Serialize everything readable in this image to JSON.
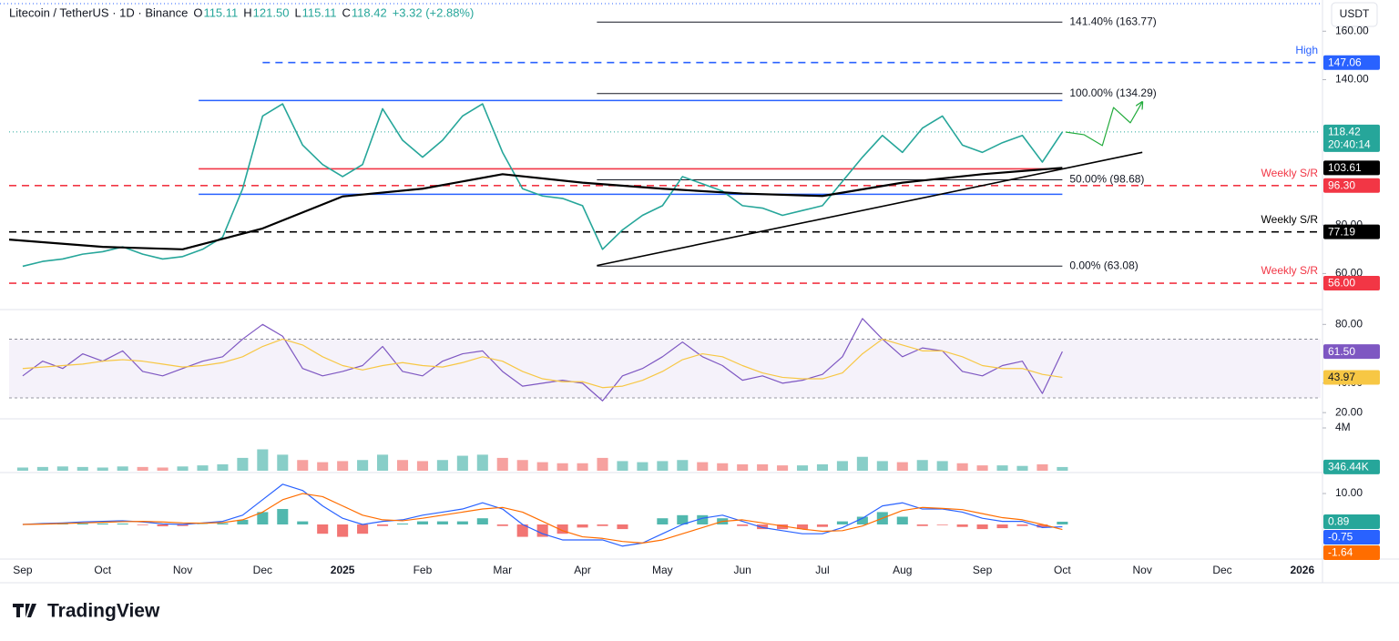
{
  "header": {
    "symbol": "Litecoin / TetherUS · 1D · Binance",
    "ohlc": [
      {
        "key": "O",
        "value": "115.11"
      },
      {
        "key": "H",
        "value": "121.50"
      },
      {
        "key": "L",
        "value": "115.11"
      },
      {
        "key": "C",
        "value": "118.42"
      }
    ],
    "change": "+3.32 (+2.88%)",
    "currency": "USDT"
  },
  "time_axis": {
    "xlim": [
      -0.17,
      16.23
    ],
    "xticks": [
      {
        "value": 0,
        "label": "Sep"
      },
      {
        "value": 1,
        "label": "Oct"
      },
      {
        "value": 2,
        "label": "Nov"
      },
      {
        "value": 3,
        "label": "Dec"
      },
      {
        "value": 4,
        "label": "2025"
      },
      {
        "value": 5,
        "label": "Feb"
      },
      {
        "value": 6,
        "label": "Mar"
      },
      {
        "value": 7,
        "label": "Apr"
      },
      {
        "value": 8,
        "label": "May"
      },
      {
        "value": 9,
        "label": "Jun"
      },
      {
        "value": 10,
        "label": "Jul"
      },
      {
        "value": 11,
        "label": "Aug"
      },
      {
        "value": 12,
        "label": "Sep"
      },
      {
        "value": 13,
        "label": "Oct"
      },
      {
        "value": 14,
        "label": "Nov"
      },
      {
        "value": 15,
        "label": "Dec"
      },
      {
        "value": 16,
        "label": "2026"
      }
    ]
  },
  "chart_data": [
    {
      "type": "line",
      "ylim": [
        47,
        171
      ],
      "yticks": [
        {
          "value": 60,
          "label": "60.00"
        },
        {
          "value": 80,
          "label": "80.00"
        },
        {
          "value": 140,
          "label": "140.00"
        },
        {
          "value": 160,
          "label": "160.00"
        }
      ],
      "x": [
        0,
        0.25,
        0.5,
        0.75,
        1,
        1.25,
        1.5,
        1.75,
        2,
        2.25,
        2.5,
        2.75,
        3,
        3.25,
        3.5,
        3.75,
        4,
        4.25,
        4.5,
        4.75,
        5,
        5.25,
        5.5,
        5.75,
        6,
        6.25,
        6.5,
        6.75,
        7,
        7.25,
        7.5,
        7.75,
        8,
        8.25,
        8.5,
        8.75,
        9,
        9.25,
        9.5,
        9.75,
        10,
        10.25,
        10.5,
        10.75,
        11,
        11.25,
        11.5,
        11.75,
        12,
        12.25,
        12.5,
        12.75,
        13
      ],
      "series": [
        {
          "style": "line",
          "color": "#26a69a",
          "width": 1.6,
          "values": [
            63,
            65,
            66,
            68,
            69,
            71,
            68,
            66,
            67,
            70,
            75,
            95,
            125,
            130,
            113,
            105,
            100,
            105,
            128,
            115,
            108,
            115,
            125,
            130,
            110,
            95,
            92,
            91,
            88,
            70,
            78,
            84,
            88,
            100,
            97,
            94,
            88,
            87,
            84,
            86,
            88,
            98,
            108,
            117,
            110,
            120,
            125,
            113,
            110,
            114,
            117,
            106,
            118.42
          ],
          "badge": {
            "color": "#26a69a",
            "extra": "20:40:14"
          },
          "last_line": true
        },
        {
          "style": "line",
          "color": "#000000",
          "width": 2.2,
          "x": [
            -0.17,
            1,
            2,
            3,
            4,
            5,
            6,
            7,
            8,
            9,
            10,
            11,
            12,
            13
          ],
          "values": [
            74,
            71,
            70,
            78.6,
            91.8,
            95,
            101,
            97.5,
            95,
            93,
            92,
            97.5,
            101,
            103.61
          ],
          "badge": {
            "color": "#000000",
            "label": "103.61"
          }
        },
        {
          "style": "line",
          "color": "#000000",
          "width": 1.6,
          "x": [
            7.18,
            14.0
          ],
          "values": [
            63.3,
            110
          ]
        },
        {
          "style": "arrow",
          "color": "#22ab3c",
          "width": 1.2,
          "x": [
            13.04,
            13.27,
            13.5,
            13.64,
            13.85,
            14.0
          ],
          "values": [
            118.4,
            117.3,
            112.8,
            128.5,
            122.2,
            130.8
          ]
        }
      ],
      "levels": [
        {
          "value": 163.77,
          "color": "#131722",
          "from": 7.18,
          "to": 13.0,
          "text": "141.40% (163.77)"
        },
        {
          "value": 147.06,
          "color": "#2962ff",
          "dash": true,
          "from": 3.0,
          "to": 16.23,
          "note": "High",
          "badge": "147.06"
        },
        {
          "value": 134.29,
          "color": "#131722",
          "from": 7.18,
          "to": 13.0,
          "text": "100.00% (134.29)"
        },
        {
          "value": 131.4,
          "color": "#2962ff",
          "from": 2.2,
          "to": 13.0
        },
        {
          "value": 103.2,
          "color": "#f23645",
          "from": 2.2,
          "to": 13.0
        },
        {
          "value": 98.68,
          "color": "#131722",
          "from": 7.18,
          "to": 13.0,
          "text": "50.00% (98.68)"
        },
        {
          "value": 96.3,
          "color": "#f23645",
          "dash": true,
          "note": "Weekly S/R",
          "badge": "96.30"
        },
        {
          "value": 92.7,
          "color": "#2962ff",
          "from": 2.2,
          "to": 13.0
        },
        {
          "value": 77.19,
          "color": "#000000",
          "dash": true,
          "note": "Weekly S/R",
          "badge": "77.19"
        },
        {
          "value": 63.08,
          "color": "#131722",
          "from": 7.18,
          "to": 13.0,
          "text": "0.00% (63.08)"
        },
        {
          "value": 56.0,
          "color": "#f23645",
          "dash": true,
          "note": "Weekly S/R",
          "badge": "56.00"
        }
      ]
    },
    {
      "type": "line",
      "ylim": [
        17,
        87
      ],
      "yticks": [
        {
          "value": 20,
          "label": "20.00"
        },
        {
          "value": 40,
          "label": "40.00"
        },
        {
          "value": 80,
          "label": "80.00"
        }
      ],
      "band": [
        30,
        70
      ],
      "x": [
        0,
        0.25,
        0.5,
        0.75,
        1,
        1.25,
        1.5,
        1.75,
        2,
        2.25,
        2.5,
        2.75,
        3,
        3.25,
        3.5,
        3.75,
        4,
        4.25,
        4.5,
        4.75,
        5,
        5.25,
        5.5,
        5.75,
        6,
        6.25,
        6.5,
        6.75,
        7,
        7.25,
        7.5,
        7.75,
        8,
        8.25,
        8.5,
        8.75,
        9,
        9.25,
        9.5,
        9.75,
        10,
        10.25,
        10.5,
        10.75,
        11,
        11.25,
        11.5,
        11.75,
        12,
        12.25,
        12.5,
        12.75,
        13
      ],
      "series": [
        {
          "style": "line",
          "color": "#7e57c2",
          "width": 1.2,
          "values": [
            45,
            55,
            50,
            60,
            55,
            62,
            48,
            45,
            50,
            55,
            58,
            70,
            80,
            72,
            50,
            45,
            48,
            52,
            65,
            48,
            45,
            55,
            60,
            62,
            48,
            38,
            40,
            42,
            40,
            28,
            45,
            50,
            58,
            68,
            58,
            52,
            42,
            45,
            40,
            42,
            46,
            58,
            84,
            70,
            58,
            64,
            62,
            48,
            45,
            52,
            55,
            33,
            61.5
          ],
          "badge": {
            "color": "#7e57c2",
            "label": "61.50"
          }
        },
        {
          "style": "line",
          "color": "#f7c744",
          "width": 1.2,
          "values": [
            50,
            51,
            52,
            53,
            55,
            56,
            55,
            53,
            51,
            52,
            54,
            58,
            65,
            70,
            66,
            58,
            52,
            49,
            52,
            54,
            52,
            51,
            54,
            58,
            55,
            48,
            43,
            41,
            41,
            37,
            38,
            42,
            48,
            56,
            60,
            58,
            52,
            47,
            44,
            43,
            43,
            47,
            60,
            70,
            66,
            62,
            62,
            58,
            52,
            50,
            50,
            46,
            43.97
          ],
          "badge": {
            "color": "#f7c744",
            "label": "43.97",
            "dark": true
          }
        }
      ],
      "levels": []
    },
    {
      "type": "bar",
      "ylim": [
        0,
        4680000
      ],
      "yticks": [
        {
          "value": 4000000,
          "label": "4M"
        }
      ],
      "x": [
        0,
        0.25,
        0.5,
        0.75,
        1,
        1.25,
        1.5,
        1.75,
        2,
        2.25,
        2.5,
        2.75,
        3,
        3.25,
        3.5,
        3.75,
        4,
        4.25,
        4.5,
        4.75,
        5,
        5.25,
        5.5,
        5.75,
        6,
        6.25,
        6.5,
        6.75,
        7,
        7.25,
        7.5,
        7.75,
        8,
        8.25,
        8.5,
        8.75,
        9,
        9.25,
        9.5,
        9.75,
        10,
        10.25,
        10.5,
        10.75,
        11,
        11.25,
        11.5,
        11.75,
        12,
        12.25,
        12.5,
        12.75,
        13
      ],
      "series": [
        {
          "style": "bar",
          "color": "#26a69a",
          "down_color": "#ef5350",
          "opacity": 0.55,
          "values": [
            300000,
            350000,
            400000,
            350000,
            300000,
            400000,
            350000,
            300000,
            400000,
            500000,
            600000,
            1200000,
            2000000,
            1500000,
            1000000,
            800000,
            900000,
            1000000,
            1500000,
            1000000,
            900000,
            1000000,
            1400000,
            1500000,
            1200000,
            1000000,
            800000,
            700000,
            700000,
            1200000,
            900000,
            800000,
            900000,
            1000000,
            800000,
            700000,
            600000,
            600000,
            500000,
            500000,
            600000,
            900000,
            1300000,
            900000,
            800000,
            1000000,
            900000,
            700000,
            500000,
            500000,
            450000,
            600000,
            346440
          ],
          "badge": {
            "color": "#26a69a",
            "label": "346.44K"
          }
        }
      ],
      "levels": []
    },
    {
      "type": "line",
      "ylim": [
        -10.6,
        15.9
      ],
      "yticks": [
        {
          "value": 10,
          "label": "10.00"
        }
      ],
      "x": [
        0,
        0.25,
        0.5,
        0.75,
        1,
        1.25,
        1.5,
        1.75,
        2,
        2.25,
        2.5,
        2.75,
        3,
        3.25,
        3.5,
        3.75,
        4,
        4.25,
        4.5,
        4.75,
        5,
        5.25,
        5.5,
        5.75,
        6,
        6.25,
        6.5,
        6.75,
        7,
        7.25,
        7.5,
        7.75,
        8,
        8.25,
        8.5,
        8.75,
        9,
        9.25,
        9.5,
        9.75,
        10,
        10.25,
        10.5,
        10.75,
        11,
        11.25,
        11.5,
        11.75,
        12,
        12.25,
        12.5,
        12.75,
        13
      ],
      "series": [
        {
          "style": "bar",
          "color": "#26a69a",
          "down_color": "#ef5350",
          "signed": true,
          "opacity": 0.8,
          "values": [
            0,
            0.2,
            0.2,
            0.3,
            0.3,
            0.3,
            -0.2,
            -0.6,
            -0.5,
            0.1,
            0.4,
            1.5,
            4,
            5,
            1,
            -3,
            -4,
            -3,
            -0.5,
            0.3,
            1,
            1,
            1,
            2,
            -0.5,
            -4,
            -4,
            -3,
            -1,
            -0.5,
            -1.5,
            0,
            2,
            3,
            3,
            2,
            -0.5,
            -1.5,
            -1.5,
            -1.5,
            -0.8,
            1,
            2.5,
            4,
            2.5,
            -0.5,
            -0.2,
            -0.8,
            -1.5,
            -1.2,
            -0.5,
            -1,
            0.89
          ],
          "badge": {
            "color": "#26a69a",
            "label": "0.89"
          }
        },
        {
          "style": "line",
          "color": "#2962ff",
          "width": 1.2,
          "values": [
            0,
            0.3,
            0.5,
            0.8,
            1,
            1.2,
            0.8,
            0.2,
            0,
            0.5,
            1,
            3,
            8,
            13,
            11,
            6,
            2,
            0,
            1,
            1.5,
            3,
            4,
            5,
            7,
            5,
            0,
            -3,
            -5,
            -5,
            -5,
            -7,
            -6,
            -3,
            0,
            2,
            3,
            1,
            -1,
            -2,
            -3,
            -3,
            -1,
            2,
            6,
            7,
            5,
            5,
            4,
            2,
            1,
            1,
            -1,
            -0.75
          ],
          "badge": {
            "color": "#2962ff",
            "label": "-0.75"
          }
        },
        {
          "style": "line",
          "color": "#ff6d00",
          "width": 1.2,
          "values": [
            0,
            0.1,
            0.3,
            0.5,
            0.7,
            0.9,
            1,
            0.8,
            0.5,
            0.4,
            0.6,
            1.5,
            4,
            8,
            10,
            9,
            6,
            3,
            1.5,
            1.2,
            2,
            3,
            4,
            5,
            5.5,
            4,
            1,
            -2,
            -4,
            -4.5,
            -5.5,
            -6,
            -5,
            -3,
            -1,
            1,
            1.5,
            0.5,
            -0.5,
            -1.5,
            -2.2,
            -2,
            -0.5,
            2,
            4.5,
            5.5,
            5.2,
            4.8,
            3.5,
            2.2,
            1.5,
            0,
            -1.64
          ],
          "badge": {
            "color": "#ff6d00",
            "label": "-1.64"
          }
        }
      ],
      "levels": []
    }
  ],
  "footer": {
    "brand": "TradingView"
  }
}
